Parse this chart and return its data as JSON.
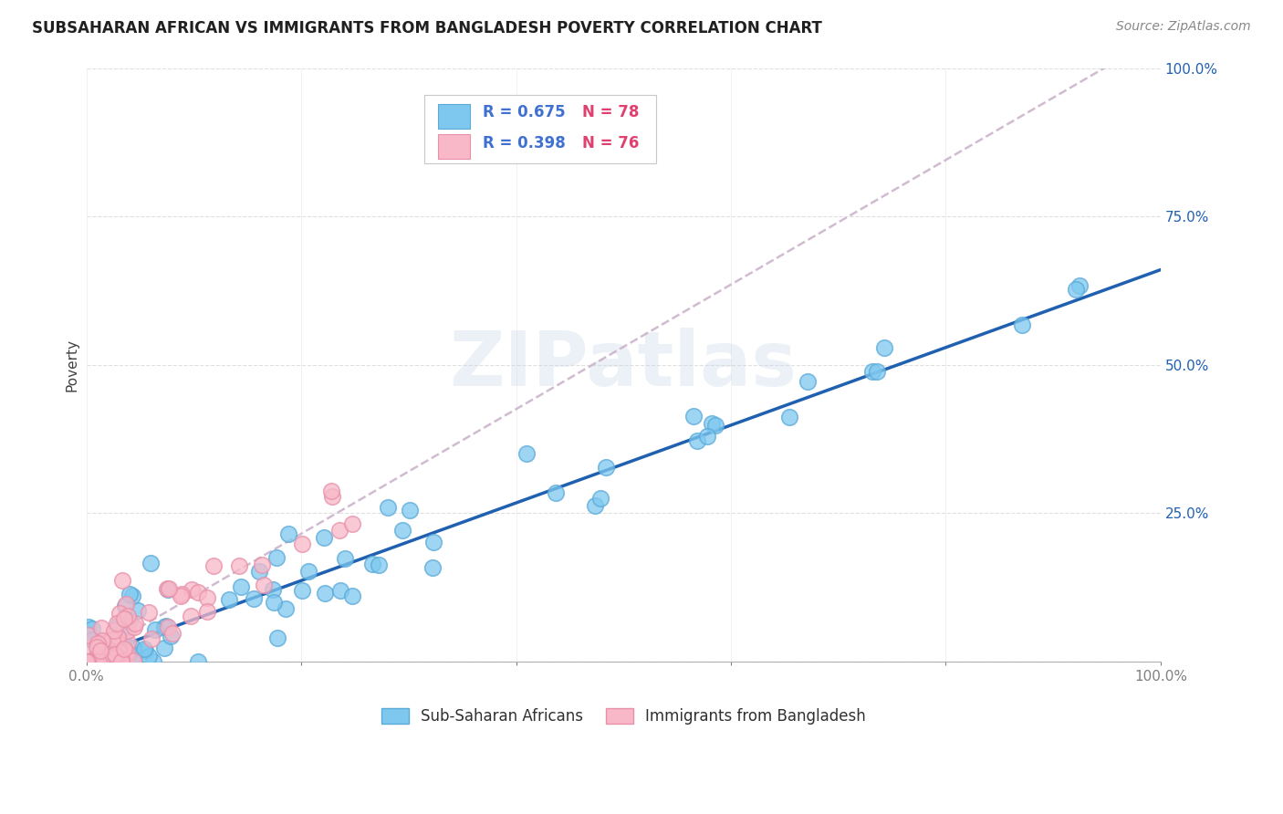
{
  "title": "SUBSAHARAN AFRICAN VS IMMIGRANTS FROM BANGLADESH POVERTY CORRELATION CHART",
  "source": "Source: ZipAtlas.com",
  "ylabel": "Poverty",
  "xlim": [
    0.0,
    1.0
  ],
  "ylim": [
    0.0,
    1.0
  ],
  "xticks": [
    0.0,
    0.2,
    0.4,
    0.6,
    0.8,
    1.0
  ],
  "xtick_labels": [
    "0.0%",
    "",
    "",
    "",
    "",
    "100.0%"
  ],
  "yticks": [
    0.0,
    0.25,
    0.5,
    0.75,
    1.0
  ],
  "ytick_labels": [
    "",
    "25.0%",
    "50.0%",
    "75.0%",
    "100.0%"
  ],
  "watermark": "ZIPatlas",
  "blue_R": 0.675,
  "blue_N": 78,
  "pink_R": 0.398,
  "pink_N": 76,
  "blue_color": "#7ec8f0",
  "blue_edge_color": "#5aaad8",
  "pink_color": "#f8b8c8",
  "pink_edge_color": "#e890a8",
  "blue_line_color": "#2060b0",
  "pink_line_color": "#c8b0c8",
  "background_color": "#ffffff",
  "grid_color": "#d8d8d8",
  "title_color": "#202020",
  "source_color": "#888888",
  "legend_R_color": "#4070d0",
  "legend_N_color": "#e04070",
  "blue_intercept": 0.005,
  "blue_slope": 0.655,
  "pink_intercept": 0.005,
  "pink_slope": 1.05,
  "blue_seed": 7,
  "pink_seed": 13
}
